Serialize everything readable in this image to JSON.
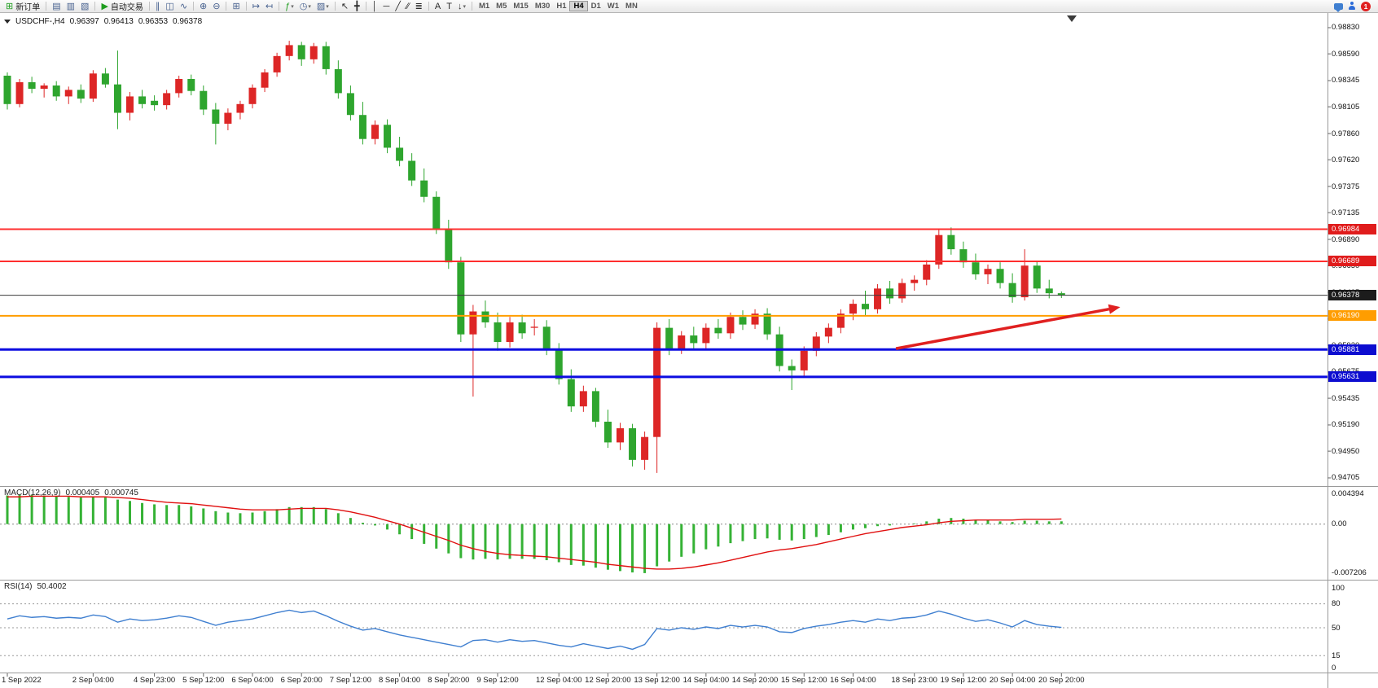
{
  "toolbar": {
    "notification_count": "1",
    "groups": [
      [
        {
          "name": "new-order-button",
          "glyph": "⊞",
          "color": "#1f9d1f",
          "label": "新订单"
        }
      ],
      [
        {
          "name": "market-watch-button",
          "glyph": "▤",
          "color": "#47618f"
        },
        {
          "name": "data-window-button",
          "glyph": "▥",
          "color": "#47618f"
        },
        {
          "name": "navigator-button",
          "glyph": "▧",
          "color": "#47618f"
        }
      ],
      [
        {
          "name": "autotrading-button",
          "glyph": "▶",
          "color": "#1f9d1f",
          "label": "自动交易"
        }
      ],
      [
        {
          "name": "bar-chart-button",
          "glyph": "∥",
          "color": "#47618f"
        },
        {
          "name": "candlestick-chart-button",
          "glyph": "◫",
          "color": "#47618f"
        },
        {
          "name": "line-chart-button",
          "glyph": "∿",
          "color": "#47618f"
        }
      ],
      [
        {
          "name": "zoom-in-button",
          "glyph": "⊕",
          "color": "#47618f"
        },
        {
          "name": "zoom-out-button",
          "glyph": "⊖",
          "color": "#47618f"
        }
      ],
      [
        {
          "name": "tile-windows-button",
          "glyph": "⊞",
          "color": "#47618f"
        }
      ],
      [
        {
          "name": "auto-scroll-button",
          "glyph": "↦",
          "color": "#47618f"
        },
        {
          "name": "chart-shift-button",
          "glyph": "↤",
          "color": "#47618f"
        }
      ],
      [
        {
          "name": "indicators-button",
          "glyph": "ƒ",
          "color": "#1f9d1f",
          "caret": true
        },
        {
          "name": "periods-button",
          "glyph": "◷",
          "color": "#47618f",
          "caret": true
        },
        {
          "name": "templates-button",
          "glyph": "▨",
          "color": "#47618f",
          "caret": true
        }
      ],
      [
        {
          "name": "cursor-button",
          "glyph": "↖",
          "color": "#2a2a2a"
        },
        {
          "name": "crosshair-button",
          "glyph": "╋",
          "color": "#2a2a2a"
        }
      ],
      [
        {
          "name": "vertical-line-button",
          "glyph": "│",
          "color": "#2a2a2a"
        },
        {
          "name": "horizontal-line-button",
          "glyph": "─",
          "color": "#2a2a2a"
        },
        {
          "name": "trendline-button",
          "glyph": "╱",
          "color": "#2a2a2a"
        },
        {
          "name": "channel-button",
          "glyph": "∕∕",
          "color": "#2a2a2a"
        },
        {
          "name": "fibonacci-button",
          "glyph": "≣",
          "color": "#2a2a2a"
        }
      ],
      [
        {
          "name": "text-button",
          "glyph": "A",
          "color": "#2a2a2a"
        },
        {
          "name": "text-label-button",
          "glyph": "T",
          "color": "#2a2a2a"
        },
        {
          "name": "arrows-button",
          "glyph": "↓",
          "color": "#2a2a2a",
          "caret": true
        }
      ]
    ],
    "timeframes": {
      "items": [
        "M1",
        "M5",
        "M15",
        "M30",
        "H1",
        "H4",
        "D1",
        "W1",
        "MN"
      ],
      "active": "H4"
    }
  },
  "chart_data": {
    "type": "candlestick",
    "symbol_title": "USDCHF-,H4",
    "ohlc_display": {
      "open": "0.96397",
      "high": "0.96413",
      "low": "0.96353",
      "close": "0.96378"
    },
    "price_axis_labels": [
      "0.98830",
      "0.98590",
      "0.98345",
      "0.98105",
      "0.97860",
      "0.97620",
      "0.97375",
      "0.97135",
      "0.96890",
      "0.96650",
      "0.96405",
      "0.96160",
      "0.95920",
      "0.95675",
      "0.95435",
      "0.95190",
      "0.94950",
      "0.94705"
    ],
    "time_labels": [
      {
        "text": "1 Sep 2022",
        "bar": 0
      },
      {
        "text": "2 Sep 04:00",
        "bar": 7
      },
      {
        "text": "4 Sep 23:00",
        "bar": 12
      },
      {
        "text": "5 Sep 12:00",
        "bar": 16
      },
      {
        "text": "6 Sep 04:00",
        "bar": 20
      },
      {
        "text": "6 Sep 20:00",
        "bar": 24
      },
      {
        "text": "7 Sep 12:00",
        "bar": 28
      },
      {
        "text": "8 Sep 04:00",
        "bar": 32
      },
      {
        "text": "8 Sep 20:00",
        "bar": 36
      },
      {
        "text": "9 Sep 12:00",
        "bar": 40
      },
      {
        "text": "12 Sep 04:00",
        "bar": 45
      },
      {
        "text": "12 Sep 20:00",
        "bar": 49
      },
      {
        "text": "13 Sep 12:00",
        "bar": 53
      },
      {
        "text": "14 Sep 04:00",
        "bar": 57
      },
      {
        "text": "14 Sep 20:00",
        "bar": 61
      },
      {
        "text": "15 Sep 12:00",
        "bar": 65
      },
      {
        "text": "16 Sep 04:00",
        "bar": 69
      },
      {
        "text": "18 Sep 23:00",
        "bar": 74
      },
      {
        "text": "19 Sep 12:00",
        "bar": 78
      },
      {
        "text": "20 Sep 04:00",
        "bar": 82
      },
      {
        "text": "20 Sep 20:00",
        "bar": 86
      }
    ],
    "hlines": [
      {
        "price": 0.96984,
        "label": "0.96984",
        "color": "#ff2e2e",
        "badge_bg": "#e01c1c",
        "width": 2
      },
      {
        "price": 0.96689,
        "label": "0.96689",
        "color": "#ff2e2e",
        "badge_bg": "#e01c1c",
        "width": 2
      },
      {
        "price": 0.9619,
        "label": "0.96190",
        "color": "#ff9d00",
        "badge_bg": "#ff9d00",
        "width": 2
      },
      {
        "price": 0.95881,
        "label": "0.95881",
        "color": "#0d0de0",
        "badge_bg": "#0d0dd0",
        "width": 3
      },
      {
        "price": 0.95631,
        "label": "0.95631",
        "color": "#0d0de0",
        "badge_bg": "#0d0dd0",
        "width": 3
      }
    ],
    "bid_line": {
      "price": 0.96378,
      "label": "0.96378",
      "color": "#3a3a3a",
      "badge_bg": "#1c1c1c"
    },
    "trend_arrow": {
      "from_bar": 72.5,
      "from_price": 0.9589,
      "to_bar": 90.8,
      "to_price": 0.9627,
      "color": "#e02020"
    },
    "candles": [
      [
        0.9839,
        0.9842,
        0.9808,
        0.9813
      ],
      [
        0.9813,
        0.9836,
        0.981,
        0.9833
      ],
      [
        0.9833,
        0.9838,
        0.9823,
        0.9827
      ],
      [
        0.9827,
        0.9832,
        0.9819,
        0.983
      ],
      [
        0.983,
        0.9834,
        0.9816,
        0.982
      ],
      [
        0.982,
        0.9829,
        0.9813,
        0.9826
      ],
      [
        0.9826,
        0.9831,
        0.9814,
        0.9818
      ],
      [
        0.9818,
        0.9844,
        0.9815,
        0.9841
      ],
      [
        0.9841,
        0.9846,
        0.9828,
        0.9831
      ],
      [
        0.9831,
        0.9862,
        0.979,
        0.9805
      ],
      [
        0.9805,
        0.9824,
        0.9798,
        0.982
      ],
      [
        0.982,
        0.9826,
        0.9809,
        0.9813
      ],
      [
        0.9816,
        0.9821,
        0.9807,
        0.9812
      ],
      [
        0.9812,
        0.9826,
        0.9808,
        0.9823
      ],
      [
        0.9823,
        0.9839,
        0.9819,
        0.9836
      ],
      [
        0.9836,
        0.984,
        0.9821,
        0.9825
      ],
      [
        0.9825,
        0.983,
        0.9803,
        0.9808
      ],
      [
        0.9808,
        0.9814,
        0.9776,
        0.9795
      ],
      [
        0.9795,
        0.9809,
        0.9789,
        0.9805
      ],
      [
        0.9805,
        0.9816,
        0.9799,
        0.9813
      ],
      [
        0.9813,
        0.9831,
        0.9809,
        0.9828
      ],
      [
        0.9828,
        0.9845,
        0.9824,
        0.9842
      ],
      [
        0.9842,
        0.986,
        0.9838,
        0.9857
      ],
      [
        0.9857,
        0.9871,
        0.9853,
        0.9867
      ],
      [
        0.9867,
        0.987,
        0.9848,
        0.9854
      ],
      [
        0.9854,
        0.9869,
        0.985,
        0.9866
      ],
      [
        0.9866,
        0.987,
        0.984,
        0.9845
      ],
      [
        0.9845,
        0.9853,
        0.9818,
        0.9823
      ],
      [
        0.9823,
        0.983,
        0.9798,
        0.9803
      ],
      [
        0.9803,
        0.9815,
        0.9776,
        0.9781
      ],
      [
        0.9781,
        0.9798,
        0.9776,
        0.9794
      ],
      [
        0.9794,
        0.9799,
        0.9768,
        0.9773
      ],
      [
        0.9773,
        0.9783,
        0.9756,
        0.9761
      ],
      [
        0.9761,
        0.9768,
        0.9738,
        0.9743
      ],
      [
        0.9743,
        0.9754,
        0.9723,
        0.9728
      ],
      [
        0.9728,
        0.9733,
        0.9694,
        0.9699
      ],
      [
        0.9699,
        0.9707,
        0.9662,
        0.9668
      ],
      [
        0.9668,
        0.9673,
        0.9595,
        0.9602
      ],
      [
        0.9602,
        0.9629,
        0.9545,
        0.9623
      ],
      [
        0.9623,
        0.9633,
        0.9608,
        0.9613
      ],
      [
        0.9613,
        0.9622,
        0.9587,
        0.9595
      ],
      [
        0.9595,
        0.9618,
        0.959,
        0.9613
      ],
      [
        0.9613,
        0.962,
        0.9598,
        0.9603
      ],
      [
        0.9608,
        0.9616,
        0.9601,
        0.9609
      ],
      [
        0.9609,
        0.9615,
        0.9583,
        0.9588
      ],
      [
        0.9588,
        0.9594,
        0.9556,
        0.9561
      ],
      [
        0.9561,
        0.957,
        0.9531,
        0.9536
      ],
      [
        0.9536,
        0.9555,
        0.9531,
        0.955
      ],
      [
        0.955,
        0.9553,
        0.9517,
        0.9522
      ],
      [
        0.9522,
        0.9533,
        0.9498,
        0.9503
      ],
      [
        0.9503,
        0.9521,
        0.9496,
        0.9516
      ],
      [
        0.9516,
        0.952,
        0.9481,
        0.9487
      ],
      [
        0.9487,
        0.9513,
        0.9478,
        0.9508
      ],
      [
        0.9508,
        0.9613,
        0.9475,
        0.9608
      ],
      [
        0.9608,
        0.9616,
        0.9583,
        0.9589
      ],
      [
        0.9589,
        0.9605,
        0.9584,
        0.9601
      ],
      [
        0.9601,
        0.9609,
        0.9589,
        0.9594
      ],
      [
        0.9594,
        0.9612,
        0.9589,
        0.9608
      ],
      [
        0.9608,
        0.9616,
        0.9598,
        0.9603
      ],
      [
        0.9603,
        0.9622,
        0.9598,
        0.9618
      ],
      [
        0.9618,
        0.9624,
        0.9606,
        0.9611
      ],
      [
        0.9611,
        0.9625,
        0.9607,
        0.9621
      ],
      [
        0.9621,
        0.9626,
        0.9597,
        0.9602
      ],
      [
        0.9602,
        0.9609,
        0.9568,
        0.9573
      ],
      [
        0.9573,
        0.9579,
        0.9551,
        0.9569
      ],
      [
        0.9569,
        0.9591,
        0.9564,
        0.9587
      ],
      [
        0.9587,
        0.9604,
        0.9582,
        0.96
      ],
      [
        0.96,
        0.9612,
        0.9594,
        0.9608
      ],
      [
        0.9608,
        0.9625,
        0.9603,
        0.9621
      ],
      [
        0.9621,
        0.9634,
        0.9615,
        0.963
      ],
      [
        0.963,
        0.9642,
        0.9619,
        0.9625
      ],
      [
        0.9625,
        0.9648,
        0.9621,
        0.9644
      ],
      [
        0.9644,
        0.9651,
        0.963,
        0.9635
      ],
      [
        0.9635,
        0.9653,
        0.9631,
        0.9649
      ],
      [
        0.9649,
        0.9656,
        0.9642,
        0.9652
      ],
      [
        0.9652,
        0.967,
        0.9647,
        0.9666
      ],
      [
        0.9666,
        0.9698,
        0.9662,
        0.9693
      ],
      [
        0.9693,
        0.97,
        0.9675,
        0.968
      ],
      [
        0.968,
        0.9687,
        0.9663,
        0.9668
      ],
      [
        0.9668,
        0.9676,
        0.9652,
        0.9657
      ],
      [
        0.9657,
        0.9666,
        0.9648,
        0.9662
      ],
      [
        0.9662,
        0.9668,
        0.9644,
        0.9649
      ],
      [
        0.9649,
        0.9658,
        0.9631,
        0.9636
      ],
      [
        0.9636,
        0.968,
        0.9633,
        0.9665
      ],
      [
        0.9665,
        0.9669,
        0.964,
        0.9644
      ],
      [
        0.9644,
        0.9652,
        0.9635,
        0.96397
      ],
      [
        0.96397,
        0.96413,
        0.96353,
        0.96378
      ]
    ],
    "indicators": {
      "macd": {
        "label": "MACD(12,26,9)",
        "value": "0.000405",
        "signal_value": "0.000745",
        "scale": {
          "max": "0.004394",
          "zero": "0.00",
          "min": "-0.007206"
        },
        "histogram": [
          0.0042,
          0.0043,
          0.0043,
          0.0042,
          0.0041,
          0.004,
          0.0039,
          0.004,
          0.0039,
          0.0036,
          0.0034,
          0.0031,
          0.0029,
          0.0028,
          0.0028,
          0.0026,
          0.0023,
          0.0019,
          0.0017,
          0.0016,
          0.0017,
          0.0019,
          0.0022,
          0.0025,
          0.0025,
          0.0025,
          0.0022,
          0.0016,
          0.0009,
          0.0002,
          -0.0002,
          -0.0008,
          -0.0015,
          -0.0022,
          -0.0029,
          -0.0036,
          -0.0043,
          -0.005,
          -0.0052,
          -0.0051,
          -0.0052,
          -0.0051,
          -0.0051,
          -0.0051,
          -0.0053,
          -0.0056,
          -0.006,
          -0.0061,
          -0.0064,
          -0.0067,
          -0.0069,
          -0.0071,
          -0.0072,
          -0.0062,
          -0.0055,
          -0.0048,
          -0.0043,
          -0.0037,
          -0.0033,
          -0.0028,
          -0.0025,
          -0.0022,
          -0.0021,
          -0.0023,
          -0.0024,
          -0.0022,
          -0.0019,
          -0.0016,
          -0.0012,
          -0.0008,
          -0.0006,
          -0.0003,
          -0.0002,
          0.0,
          0.0001,
          0.0004,
          0.0008,
          0.0009,
          0.0008,
          0.0006,
          0.0006,
          0.0004,
          0.0003,
          0.0005,
          0.0005,
          0.0004,
          0.000405
        ],
        "signal": [
          0.004,
          0.004,
          0.0041,
          0.0041,
          0.0041,
          0.0041,
          0.004,
          0.004,
          0.004,
          0.0039,
          0.0038,
          0.0036,
          0.0034,
          0.0032,
          0.0031,
          0.003,
          0.0028,
          0.0026,
          0.0024,
          0.0022,
          0.0021,
          0.0021,
          0.0021,
          0.0022,
          0.0023,
          0.0023,
          0.0023,
          0.0021,
          0.0018,
          0.0014,
          0.001,
          0.0005,
          0.0,
          -0.0006,
          -0.0012,
          -0.0018,
          -0.0024,
          -0.0031,
          -0.0036,
          -0.004,
          -0.0043,
          -0.0045,
          -0.0046,
          -0.0047,
          -0.0048,
          -0.005,
          -0.0052,
          -0.0054,
          -0.0056,
          -0.0059,
          -0.0061,
          -0.0063,
          -0.0065,
          -0.0066,
          -0.0066,
          -0.0065,
          -0.0063,
          -0.006,
          -0.0057,
          -0.0053,
          -0.0049,
          -0.0045,
          -0.0041,
          -0.0038,
          -0.0036,
          -0.0033,
          -0.003,
          -0.0026,
          -0.0022,
          -0.0018,
          -0.0014,
          -0.0011,
          -0.0008,
          -0.0005,
          -0.0003,
          -0.0001,
          0.0002,
          0.0004,
          0.0005,
          0.0006,
          0.0006,
          0.0006,
          0.0006,
          0.0007,
          0.0007,
          0.0007,
          0.000745
        ]
      },
      "rsi": {
        "label": "RSI(14)",
        "value": "50.4002",
        "levels": [
          "100",
          "80",
          "50",
          "15",
          "0"
        ],
        "values": [
          61,
          65,
          63,
          64,
          62,
          63,
          62,
          66,
          64,
          57,
          61,
          59,
          60,
          62,
          65,
          63,
          58,
          53,
          57,
          59,
          61,
          65,
          69,
          72,
          69,
          71,
          65,
          58,
          52,
          47,
          49,
          45,
          41,
          38,
          35,
          32,
          29,
          26,
          34,
          35,
          32,
          35,
          33,
          34,
          31,
          28,
          26,
          30,
          27,
          24,
          27,
          23,
          29,
          49,
          47,
          50,
          48,
          51,
          49,
          53,
          51,
          53,
          51,
          45,
          44,
          49,
          52,
          54,
          57,
          59,
          57,
          61,
          59,
          62,
          63,
          66,
          71,
          67,
          62,
          58,
          60,
          56,
          51,
          59,
          54,
          52,
          50.4
        ]
      }
    }
  }
}
